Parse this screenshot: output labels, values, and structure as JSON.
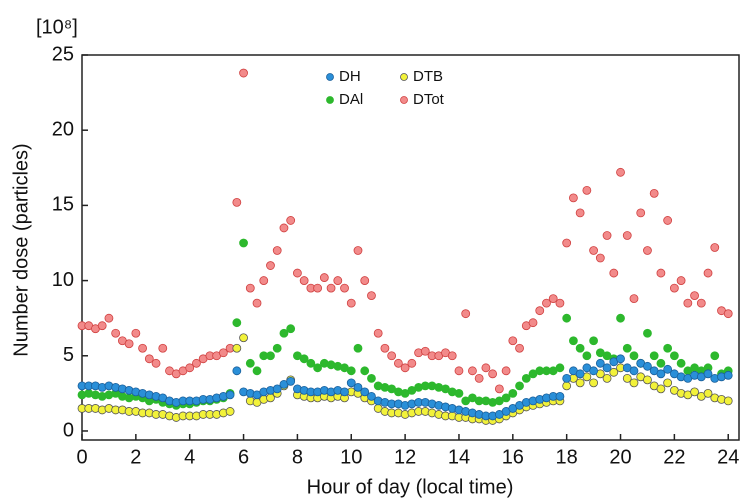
{
  "chart_data": {
    "type": "scatter",
    "unit_label": "[10⁸]",
    "x_label": "Hour of day (local time)",
    "y_label": "Number dose (particles)",
    "xlim": [
      0,
      24.4
    ],
    "ylim": [
      -0.6,
      25
    ],
    "xticks": [
      0,
      2,
      4,
      6,
      8,
      10,
      12,
      14,
      16,
      18,
      20,
      22,
      24
    ],
    "yticks": [
      0,
      5,
      10,
      15,
      20,
      25
    ],
    "grid": false,
    "legend": "top",
    "x": [
      0,
      0.25,
      0.5,
      0.75,
      1,
      1.25,
      1.5,
      1.75,
      2,
      2.25,
      2.5,
      2.75,
      3,
      3.25,
      3.5,
      3.75,
      4,
      4.25,
      4.5,
      4.75,
      5,
      5.25,
      5.5,
      5.75,
      6,
      6.25,
      6.5,
      6.75,
      7,
      7.25,
      7.5,
      7.75,
      8,
      8.25,
      8.5,
      8.75,
      9,
      9.25,
      9.5,
      9.75,
      10,
      10.25,
      10.5,
      10.75,
      11,
      11.25,
      11.5,
      11.75,
      12,
      12.25,
      12.5,
      12.75,
      13,
      13.25,
      13.5,
      13.75,
      14,
      14.25,
      14.5,
      14.75,
      15,
      15.25,
      15.5,
      15.75,
      16,
      16.25,
      16.5,
      16.75,
      17,
      17.25,
      17.5,
      17.75,
      18,
      18.25,
      18.5,
      18.75,
      19,
      19.25,
      19.5,
      19.75,
      20,
      20.25,
      20.5,
      20.75,
      21,
      21.25,
      21.5,
      21.75,
      22,
      22.25,
      22.5,
      22.75,
      23,
      23.25,
      23.5,
      23.75,
      24
    ],
    "series": [
      {
        "name": "DH",
        "color": "#2a8fd8",
        "edge": "#1a5f9a",
        "values": [
          3.0,
          3.0,
          3.0,
          2.9,
          3.0,
          2.9,
          2.8,
          2.7,
          2.6,
          2.5,
          2.4,
          2.3,
          2.2,
          2.0,
          1.9,
          2.0,
          2.0,
          2.0,
          2.1,
          2.1,
          2.2,
          2.3,
          2.4,
          4.0,
          2.6,
          2.5,
          2.4,
          2.6,
          2.7,
          2.8,
          3.1,
          3.3,
          2.8,
          2.7,
          2.6,
          2.6,
          2.7,
          2.6,
          2.7,
          2.6,
          3.2,
          2.9,
          2.6,
          2.3,
          2.0,
          1.9,
          1.8,
          1.8,
          1.7,
          1.8,
          1.9,
          1.9,
          1.8,
          1.7,
          1.6,
          1.5,
          1.4,
          1.3,
          1.2,
          1.1,
          1.0,
          1.0,
          1.1,
          1.3,
          1.5,
          1.7,
          1.9,
          2.0,
          2.1,
          2.2,
          2.3,
          2.3,
          3.5,
          4.0,
          3.8,
          4.2,
          4.0,
          4.5,
          4.2,
          4.6,
          4.8,
          4.2,
          4.0,
          4.5,
          4.3,
          4.0,
          3.8,
          4.1,
          3.8,
          3.6,
          3.5,
          3.7,
          3.6,
          3.8,
          3.5,
          3.6,
          3.7
        ]
      },
      {
        "name": "DTB",
        "color": "#f2f23a",
        "edge": "#555555",
        "values": [
          1.5,
          1.5,
          1.5,
          1.4,
          1.5,
          1.4,
          1.4,
          1.3,
          1.3,
          1.2,
          1.2,
          1.1,
          1.1,
          1.0,
          0.9,
          1.0,
          1.0,
          1.0,
          1.1,
          1.1,
          1.1,
          1.2,
          1.3,
          5.5,
          6.2,
          2.0,
          1.9,
          2.1,
          2.2,
          2.5,
          3.0,
          3.4,
          2.4,
          2.3,
          2.2,
          2.2,
          2.3,
          2.2,
          2.3,
          2.2,
          2.6,
          2.5,
          2.2,
          2.0,
          1.5,
          1.3,
          1.2,
          1.2,
          1.1,
          1.2,
          1.3,
          1.3,
          1.2,
          1.1,
          1.0,
          1.0,
          0.9,
          0.9,
          0.8,
          0.8,
          0.7,
          0.7,
          0.8,
          1.0,
          1.2,
          1.4,
          1.6,
          1.7,
          1.8,
          1.9,
          2.0,
          2.0,
          3.0,
          3.5,
          3.2,
          3.6,
          3.2,
          3.8,
          3.5,
          3.9,
          4.2,
          3.5,
          3.2,
          3.6,
          3.4,
          3.0,
          2.8,
          3.2,
          2.7,
          2.5,
          2.4,
          2.6,
          2.3,
          2.5,
          2.2,
          2.1,
          2.0
        ]
      },
      {
        "name": "DAl",
        "color": "#2db82d",
        "edge": "#2db82d",
        "values": [
          2.4,
          2.5,
          2.4,
          2.3,
          2.4,
          2.5,
          2.3,
          2.2,
          2.3,
          2.2,
          2.0,
          2.1,
          1.9,
          1.8,
          1.7,
          1.8,
          1.8,
          1.9,
          2.0,
          2.0,
          2.1,
          2.2,
          2.5,
          7.2,
          12.5,
          4.5,
          4.0,
          5.0,
          5.0,
          5.5,
          6.5,
          6.8,
          5.0,
          4.8,
          4.5,
          4.2,
          4.5,
          4.4,
          4.3,
          4.2,
          4.0,
          5.5,
          4.0,
          3.5,
          3.0,
          2.9,
          2.8,
          2.6,
          2.5,
          2.7,
          2.9,
          3.0,
          3.0,
          2.9,
          2.8,
          2.6,
          2.5,
          2.0,
          2.2,
          2.0,
          2.0,
          1.9,
          2.0,
          2.2,
          2.5,
          3.0,
          3.5,
          3.8,
          4.0,
          4.0,
          4.0,
          4.2,
          7.5,
          6.0,
          5.5,
          5.0,
          6.0,
          5.2,
          5.0,
          4.8,
          7.5,
          5.5,
          5.0,
          4.5,
          6.5,
          5.0,
          4.5,
          5.5,
          5.0,
          4.5,
          4.0,
          4.2,
          4.0,
          4.2,
          5.0,
          3.8,
          4.0
        ]
      },
      {
        "name": "DTot",
        "color": "#f28a8a",
        "edge": "#d04040",
        "values": [
          7.0,
          7.0,
          6.8,
          7.0,
          7.5,
          6.5,
          6.0,
          5.8,
          6.5,
          5.5,
          4.8,
          4.5,
          5.5,
          4.0,
          3.8,
          4.0,
          4.2,
          4.5,
          4.8,
          5.0,
          5.0,
          5.2,
          5.5,
          15.2,
          23.8,
          9.5,
          8.5,
          10.0,
          11.0,
          12.0,
          13.5,
          14.0,
          10.5,
          10.0,
          9.5,
          9.5,
          10.2,
          9.5,
          10.0,
          9.5,
          8.5,
          12.0,
          10.0,
          9.0,
          6.5,
          5.5,
          5.0,
          4.5,
          4.2,
          4.5,
          5.2,
          5.3,
          5.0,
          5.0,
          5.2,
          5.0,
          4.0,
          7.8,
          4.0,
          3.5,
          4.2,
          3.8,
          2.8,
          4.0,
          6.0,
          5.5,
          7.0,
          7.2,
          8.0,
          8.5,
          8.8,
          8.5,
          12.5,
          15.5,
          14.5,
          16.0,
          12.0,
          11.5,
          13.0,
          10.5,
          17.2,
          13.0,
          8.8,
          14.5,
          12.0,
          15.8,
          10.5,
          14.0,
          9.5,
          10.0,
          8.5,
          9.0,
          8.5,
          10.5,
          12.2,
          8.0,
          7.8
        ]
      }
    ]
  }
}
